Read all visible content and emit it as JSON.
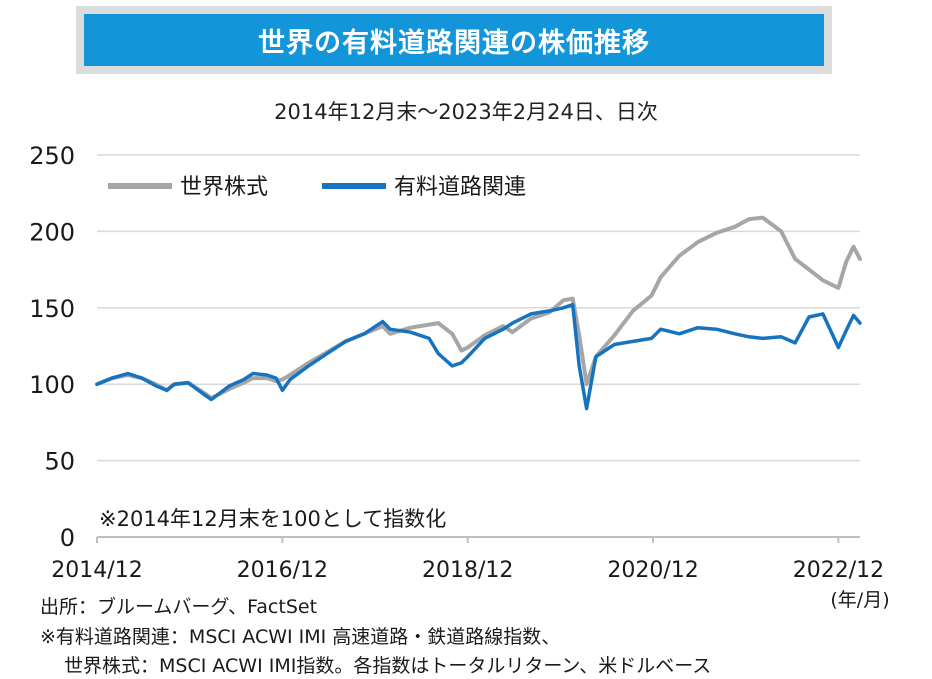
{
  "header": {
    "title": "世界の有料道路関連の株価推移",
    "subtitle": "2014年12月末～2023年2月24日、日次"
  },
  "chart_data": {
    "type": "line",
    "ylim": [
      0,
      250
    ],
    "yticks": [
      0,
      50,
      100,
      150,
      200,
      250
    ],
    "xlim": [
      2014.917,
      2023.15
    ],
    "xticks": [
      {
        "x": 2014.917,
        "label": "2014/12"
      },
      {
        "x": 2016.917,
        "label": "2016/12"
      },
      {
        "x": 2018.917,
        "label": "2018/12"
      },
      {
        "x": 2020.917,
        "label": "2020/12"
      },
      {
        "x": 2022.917,
        "label": "2022/12"
      }
    ],
    "x_unit_label": "(年/月)",
    "grid": true,
    "legend_position": "top-left",
    "annotation": "※2014年12月末を100として指数化",
    "series": [
      {
        "name": "世界株式",
        "color": "#a6a6a6",
        "x": [
          2014.917,
          2015.08,
          2015.25,
          2015.4,
          2015.55,
          2015.67,
          2015.75,
          2015.9,
          2016.08,
          2016.15,
          2016.35,
          2016.5,
          2016.6,
          2016.75,
          2016.85,
          2016.917,
          2017.0,
          2017.2,
          2017.4,
          2017.6,
          2017.8,
          2018.0,
          2018.08,
          2018.3,
          2018.5,
          2018.6,
          2018.75,
          2018.85,
          2018.917,
          2019.1,
          2019.3,
          2019.4,
          2019.6,
          2019.8,
          2019.95,
          2020.05,
          2020.12,
          2020.2,
          2020.3,
          2020.5,
          2020.7,
          2020.9,
          2021.0,
          2021.2,
          2021.4,
          2021.6,
          2021.8,
          2021.95,
          2022.1,
          2022.3,
          2022.45,
          2022.6,
          2022.75,
          2022.917,
          2023.0,
          2023.08,
          2023.15
        ],
        "values": [
          100,
          104,
          106,
          104,
          100,
          96,
          100,
          101,
          94,
          91,
          97,
          101,
          104,
          104,
          102,
          103,
          106,
          114,
          121,
          128,
          133,
          138,
          133,
          137,
          139,
          140,
          133,
          122,
          124,
          132,
          138,
          134,
          143,
          147,
          155,
          156,
          132,
          100,
          118,
          132,
          148,
          158,
          170,
          184,
          193,
          199,
          203,
          208,
          209,
          200,
          182,
          175,
          168,
          163,
          180,
          190,
          182
        ]
      },
      {
        "name": "有料道路関連",
        "color": "#1673c0",
        "x": [
          2014.917,
          2015.08,
          2015.25,
          2015.4,
          2015.55,
          2015.67,
          2015.75,
          2015.9,
          2016.08,
          2016.15,
          2016.35,
          2016.5,
          2016.6,
          2016.75,
          2016.85,
          2016.917,
          2017.0,
          2017.2,
          2017.4,
          2017.6,
          2017.8,
          2018.0,
          2018.08,
          2018.3,
          2018.5,
          2018.6,
          2018.75,
          2018.85,
          2018.917,
          2019.1,
          2019.3,
          2019.4,
          2019.6,
          2019.8,
          2019.95,
          2020.05,
          2020.12,
          2020.2,
          2020.3,
          2020.5,
          2020.7,
          2020.9,
          2021.0,
          2021.2,
          2021.4,
          2021.6,
          2021.8,
          2021.95,
          2022.1,
          2022.3,
          2022.45,
          2022.6,
          2022.75,
          2022.917,
          2023.0,
          2023.08,
          2023.15
        ],
        "values": [
          100,
          104,
          107,
          104,
          99,
          96,
          100,
          101,
          93,
          90,
          99,
          103,
          107,
          106,
          104,
          96,
          103,
          112,
          120,
          128,
          133,
          141,
          136,
          134,
          130,
          120,
          112,
          114,
          118,
          130,
          136,
          140,
          146,
          148,
          150,
          152,
          112,
          84,
          118,
          126,
          128,
          130,
          136,
          133,
          137,
          136,
          133,
          131,
          130,
          131,
          127,
          144,
          146,
          124,
          135,
          145,
          140
        ]
      }
    ]
  },
  "footer": {
    "source": "出所：ブルームバーグ、FactSet",
    "note_1": "※有料道路関連：MSCI ACWI IMI 高速道路・鉄道路線指数、",
    "note_2": "世界株式：MSCI ACWI IMI指数。各指数はトータルリターン、米ドルベース"
  }
}
